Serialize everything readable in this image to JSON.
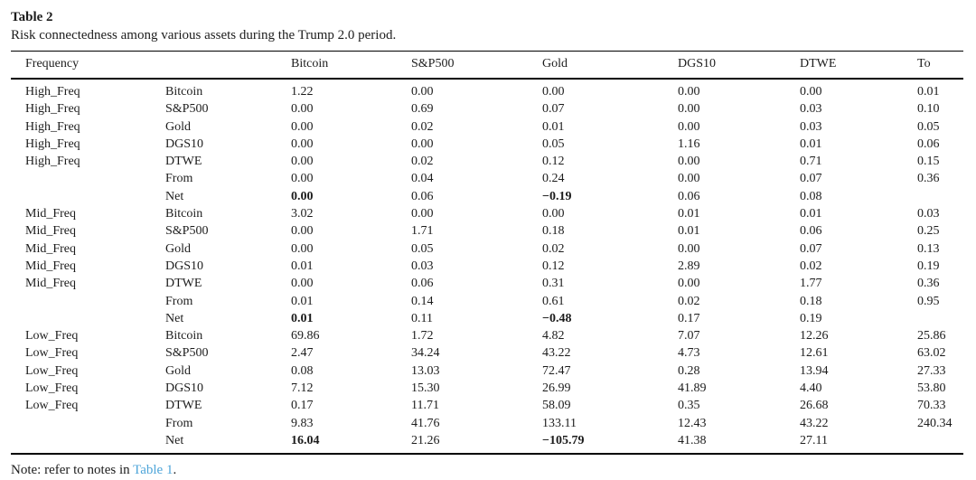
{
  "page": {
    "title": "Table 2",
    "caption": "Risk connectedness among various assets during the Trump 2.0 period.",
    "note_prefix": "Note: refer to notes in ",
    "note_link": "Table 1",
    "note_suffix": "."
  },
  "colors": {
    "text": "#1c1c1c",
    "link": "#4ea5d9",
    "rule": "#000000",
    "background": "#ffffff"
  },
  "table": {
    "headers": [
      "Frequency",
      "",
      "Bitcoin",
      "S&P500",
      "Gold",
      "DGS10",
      "DTWE",
      "To"
    ],
    "rows": [
      {
        "frequency": "High_Freq",
        "label": "Bitcoin",
        "values": [
          "1.22",
          "0.00",
          "0.00",
          "0.00",
          "0.00",
          "0.01"
        ],
        "bold_cols": []
      },
      {
        "frequency": "High_Freq",
        "label": "S&P500",
        "values": [
          "0.00",
          "0.69",
          "0.07",
          "0.00",
          "0.03",
          "0.10"
        ],
        "bold_cols": []
      },
      {
        "frequency": "High_Freq",
        "label": "Gold",
        "values": [
          "0.00",
          "0.02",
          "0.01",
          "0.00",
          "0.03",
          "0.05"
        ],
        "bold_cols": []
      },
      {
        "frequency": "High_Freq",
        "label": "DGS10",
        "values": [
          "0.00",
          "0.00",
          "0.05",
          "1.16",
          "0.01",
          "0.06"
        ],
        "bold_cols": []
      },
      {
        "frequency": "High_Freq",
        "label": "DTWE",
        "values": [
          "0.00",
          "0.02",
          "0.12",
          "0.00",
          "0.71",
          "0.15"
        ],
        "bold_cols": []
      },
      {
        "frequency": "",
        "label": "From",
        "values": [
          "0.00",
          "0.04",
          "0.24",
          "0.00",
          "0.07",
          "0.36"
        ],
        "bold_cols": []
      },
      {
        "frequency": "",
        "label": "Net",
        "values": [
          "0.00",
          "0.06",
          "−0.19",
          "0.06",
          "0.08",
          ""
        ],
        "bold_cols": [
          0,
          2
        ]
      },
      {
        "frequency": "Mid_Freq",
        "label": "Bitcoin",
        "values": [
          "3.02",
          "0.00",
          "0.00",
          "0.01",
          "0.01",
          "0.03"
        ],
        "bold_cols": []
      },
      {
        "frequency": "Mid_Freq",
        "label": "S&P500",
        "values": [
          "0.00",
          "1.71",
          "0.18",
          "0.01",
          "0.06",
          "0.25"
        ],
        "bold_cols": []
      },
      {
        "frequency": "Mid_Freq",
        "label": "Gold",
        "values": [
          "0.00",
          "0.05",
          "0.02",
          "0.00",
          "0.07",
          "0.13"
        ],
        "bold_cols": []
      },
      {
        "frequency": "Mid_Freq",
        "label": "DGS10",
        "values": [
          "0.01",
          "0.03",
          "0.12",
          "2.89",
          "0.02",
          "0.19"
        ],
        "bold_cols": []
      },
      {
        "frequency": "Mid_Freq",
        "label": "DTWE",
        "values": [
          "0.00",
          "0.06",
          "0.31",
          "0.00",
          "1.77",
          "0.36"
        ],
        "bold_cols": []
      },
      {
        "frequency": "",
        "label": "From",
        "values": [
          "0.01",
          "0.14",
          "0.61",
          "0.02",
          "0.18",
          "0.95"
        ],
        "bold_cols": []
      },
      {
        "frequency": "",
        "label": "Net",
        "values": [
          "0.01",
          "0.11",
          "−0.48",
          "0.17",
          "0.19",
          ""
        ],
        "bold_cols": [
          0,
          2
        ]
      },
      {
        "frequency": "Low_Freq",
        "label": "Bitcoin",
        "values": [
          "69.86",
          "1.72",
          "4.82",
          "7.07",
          "12.26",
          "25.86"
        ],
        "bold_cols": []
      },
      {
        "frequency": "Low_Freq",
        "label": "S&P500",
        "values": [
          "2.47",
          "34.24",
          "43.22",
          "4.73",
          "12.61",
          "63.02"
        ],
        "bold_cols": []
      },
      {
        "frequency": "Low_Freq",
        "label": "Gold",
        "values": [
          "0.08",
          "13.03",
          "72.47",
          "0.28",
          "13.94",
          "27.33"
        ],
        "bold_cols": []
      },
      {
        "frequency": "Low_Freq",
        "label": "DGS10",
        "values": [
          "7.12",
          "15.30",
          "26.99",
          "41.89",
          "4.40",
          "53.80"
        ],
        "bold_cols": []
      },
      {
        "frequency": "Low_Freq",
        "label": "DTWE",
        "values": [
          "0.17",
          "11.71",
          "58.09",
          "0.35",
          "26.68",
          "70.33"
        ],
        "bold_cols": []
      },
      {
        "frequency": "",
        "label": "From",
        "values": [
          "9.83",
          "41.76",
          "133.11",
          "12.43",
          "43.22",
          "240.34"
        ],
        "bold_cols": []
      },
      {
        "frequency": "",
        "label": "Net",
        "values": [
          "16.04",
          "21.26",
          "−105.79",
          "41.38",
          "27.11",
          ""
        ],
        "bold_cols": [
          0,
          2
        ]
      }
    ]
  }
}
